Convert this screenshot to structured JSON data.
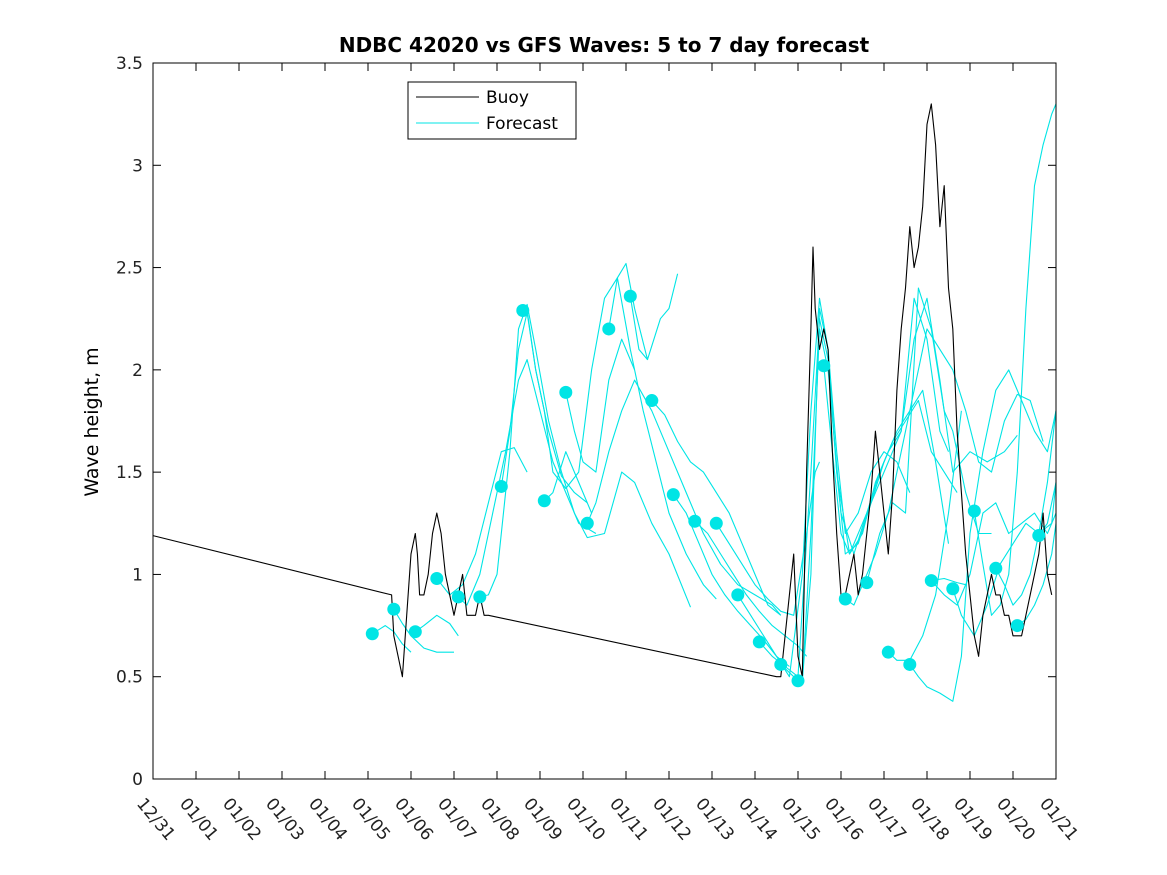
{
  "chart_data": {
    "type": "line",
    "title": "NDBC 42020 vs GFS Waves: 5 to 7 day forecast",
    "xlabel": "",
    "ylabel": "Wave height, m",
    "xlim": [
      0,
      21
    ],
    "ylim": [
      0,
      3.5
    ],
    "y_ticks": [
      0,
      0.5,
      1,
      1.5,
      2,
      2.5,
      3,
      3.5
    ],
    "y_tick_labels": [
      "0",
      "0.5",
      "1",
      "1.5",
      "2",
      "2.5",
      "3",
      "3.5"
    ],
    "x_ticks": [
      0,
      1,
      2,
      3,
      4,
      5,
      6,
      7,
      8,
      9,
      10,
      11,
      12,
      13,
      14,
      15,
      16,
      17,
      18,
      19,
      20,
      21
    ],
    "x_tick_labels": [
      "12/31",
      "01/01",
      "01/02",
      "01/03",
      "01/04",
      "01/05",
      "01/06",
      "01/07",
      "01/08",
      "01/09",
      "01/10",
      "01/11",
      "01/12",
      "01/13",
      "01/14",
      "01/15",
      "01/16",
      "01/17",
      "01/18",
      "01/19",
      "01/20",
      "01/21"
    ],
    "legend": {
      "location": "top-left",
      "entries": [
        {
          "name": "Buoy",
          "color": "#000000"
        },
        {
          "name": "Forecast",
          "color": "#00e5e5"
        }
      ]
    },
    "series": [
      {
        "name": "Buoy",
        "color": "#000000",
        "x": [
          0,
          5.55,
          5.6,
          5.7,
          5.8,
          5.9,
          6.0,
          6.1,
          6.15,
          6.2,
          6.3,
          6.4,
          6.5,
          6.6,
          6.7,
          6.8,
          6.9,
          7.0,
          7.1,
          7.2,
          7.3,
          7.4,
          7.5,
          7.6,
          7.7,
          7.8,
          14.5,
          14.6,
          14.7,
          14.8,
          14.9,
          15.0,
          15.1,
          15.2,
          15.3,
          15.35,
          15.4,
          15.5,
          15.6,
          15.7,
          15.8,
          15.9,
          16.0,
          16.1,
          16.2,
          16.3,
          16.4,
          16.5,
          16.6,
          16.7,
          16.8,
          16.9,
          17.0,
          17.1,
          17.2,
          17.3,
          17.4,
          17.5,
          17.6,
          17.7,
          17.8,
          17.9,
          18.0,
          18.1,
          18.2,
          18.3,
          18.4,
          18.5,
          18.6,
          18.7,
          18.8,
          18.9,
          19.0,
          19.1,
          19.2,
          19.3,
          19.4,
          19.5,
          19.6,
          19.7,
          19.8,
          19.9,
          20.0,
          20.1,
          20.2,
          20.3,
          20.4,
          20.5,
          20.6,
          20.7,
          20.8,
          20.9
        ],
        "y": [
          1.19,
          0.9,
          0.7,
          0.6,
          0.5,
          0.8,
          1.1,
          1.2,
          1.1,
          0.9,
          0.9,
          1.0,
          1.2,
          1.3,
          1.2,
          1.0,
          0.9,
          0.8,
          0.9,
          1.0,
          0.8,
          0.8,
          0.8,
          0.9,
          0.8,
          0.8,
          0.5,
          0.5,
          0.7,
          0.9,
          1.1,
          0.6,
          0.5,
          1.5,
          2.2,
          2.6,
          2.3,
          2.1,
          2.2,
          2.1,
          1.6,
          1.2,
          0.9,
          0.9,
          1.0,
          1.1,
          0.9,
          1.0,
          1.2,
          1.4,
          1.7,
          1.5,
          1.3,
          1.1,
          1.4,
          1.9,
          2.2,
          2.4,
          2.7,
          2.5,
          2.6,
          2.8,
          3.2,
          3.3,
          3.1,
          2.7,
          2.9,
          2.4,
          2.2,
          1.7,
          1.4,
          1.1,
          0.9,
          0.7,
          0.6,
          0.8,
          0.9,
          1.0,
          0.9,
          0.9,
          0.8,
          0.8,
          0.7,
          0.7,
          0.7,
          0.8,
          0.9,
          1.0,
          1.1,
          1.3,
          1.0,
          0.9
        ]
      },
      {
        "name": "Forecast",
        "color": "#00e5e5",
        "x": [
          5.1,
          5.4,
          5.6,
          5.8,
          6.0
        ],
        "y": [
          0.71,
          0.75,
          0.72,
          0.66,
          0.62
        ]
      },
      {
        "name": "Forecast",
        "color": "#00e5e5",
        "x": [
          5.6,
          5.8,
          6.0,
          6.3,
          6.6,
          7.0
        ],
        "y": [
          0.83,
          0.76,
          0.7,
          0.64,
          0.62,
          0.62
        ]
      },
      {
        "name": "Forecast",
        "color": "#00e5e5",
        "x": [
          6.1,
          6.3,
          6.6,
          6.9,
          7.1
        ],
        "y": [
          0.72,
          0.75,
          0.8,
          0.76,
          0.7
        ]
      },
      {
        "name": "Forecast",
        "color": "#00e5e5",
        "x": [
          6.6,
          6.9,
          7.2,
          7.5,
          7.8,
          8.1,
          8.4,
          8.7
        ],
        "y": [
          0.98,
          0.9,
          0.95,
          1.1,
          1.35,
          1.6,
          1.62,
          1.5
        ]
      },
      {
        "name": "Forecast",
        "color": "#00e5e5",
        "x": [
          7.1,
          7.3,
          7.6,
          7.9,
          8.2,
          8.5,
          8.7,
          9.0,
          9.3,
          9.6,
          9.9,
          10.3
        ],
        "y": [
          0.89,
          0.85,
          1.0,
          1.3,
          1.6,
          1.95,
          2.05,
          1.8,
          1.55,
          1.4,
          1.25,
          1.2
        ]
      },
      {
        "name": "Forecast",
        "color": "#00e5e5",
        "x": [
          7.6,
          7.8,
          8.0,
          8.3,
          8.5,
          8.7,
          8.9,
          9.2,
          9.5,
          9.8,
          10.1,
          10.5,
          10.9,
          11.2,
          11.6,
          12.0,
          12.5
        ],
        "y": [
          0.89,
          0.9,
          1.0,
          1.6,
          2.2,
          2.32,
          2.1,
          1.75,
          1.5,
          1.3,
          1.18,
          1.2,
          1.5,
          1.45,
          1.25,
          1.1,
          0.84
        ]
      },
      {
        "name": "Forecast",
        "color": "#00e5e5",
        "x": [
          8.1,
          8.3,
          8.5,
          8.7,
          8.9,
          9.2,
          9.5,
          9.8,
          10.1
        ],
        "y": [
          1.43,
          1.7,
          2.1,
          2.28,
          2.0,
          1.7,
          1.48,
          1.4,
          1.35
        ]
      },
      {
        "name": "Forecast",
        "color": "#00e5e5",
        "x": [
          8.7,
          8.9,
          9.1,
          9.3,
          9.6,
          9.9,
          10.2,
          10.5,
          10.8,
          11.1,
          11.4,
          11.7,
          12.0,
          12.4,
          12.8,
          13.1
        ],
        "y": [
          2.29,
          2.0,
          1.8,
          1.5,
          1.42,
          1.5,
          2.0,
          2.35,
          2.45,
          2.1,
          1.8,
          1.55,
          1.3,
          1.1,
          0.95,
          0.88
        ]
      },
      {
        "name": "Forecast",
        "color": "#00e5e5",
        "x": [
          9.1,
          9.3,
          9.6,
          9.9,
          10.2
        ],
        "y": [
          1.36,
          1.4,
          1.6,
          1.45,
          1.3
        ]
      },
      {
        "name": "Forecast",
        "color": "#00e5e5",
        "x": [
          9.6,
          9.8,
          10.0,
          10.3,
          10.6,
          10.9,
          11.2
        ],
        "y": [
          1.89,
          1.7,
          1.55,
          1.5,
          1.95,
          2.15,
          2.0
        ]
      },
      {
        "name": "Forecast",
        "color": "#00e5e5",
        "x": [
          10.1,
          10.3,
          10.6,
          10.9,
          11.2,
          11.6,
          12.0,
          12.4,
          12.8,
          13.2,
          13.6,
          14.0,
          14.4,
          14.6
        ],
        "y": [
          1.25,
          1.35,
          1.6,
          1.8,
          1.95,
          1.8,
          1.6,
          1.4,
          1.2,
          1.05,
          0.95,
          0.9,
          0.85,
          0.8
        ]
      },
      {
        "name": "Forecast",
        "color": "#00e5e5",
        "x": [
          10.6,
          10.8,
          11.0,
          11.2,
          11.5
        ],
        "y": [
          2.2,
          2.45,
          2.52,
          2.3,
          2.05
        ]
      },
      {
        "name": "Forecast",
        "color": "#00e5e5",
        "x": [
          11.1,
          11.3,
          11.5,
          11.8,
          12.0,
          12.2
        ],
        "y": [
          2.36,
          2.1,
          2.05,
          2.25,
          2.3,
          2.47
        ]
      },
      {
        "name": "Forecast",
        "color": "#00e5e5",
        "x": [
          11.6,
          11.9,
          12.2,
          12.5,
          12.8,
          13.1,
          13.4,
          13.7,
          14.0,
          14.3,
          14.6
        ],
        "y": [
          1.85,
          1.78,
          1.65,
          1.55,
          1.5,
          1.4,
          1.3,
          1.15,
          1.0,
          0.85,
          0.8
        ]
      },
      {
        "name": "Forecast",
        "color": "#00e5e5",
        "x": [
          12.1,
          12.4,
          12.7,
          13.0,
          13.3,
          13.6,
          13.9,
          14.2,
          14.5,
          14.8
        ],
        "y": [
          1.39,
          1.3,
          1.15,
          1.0,
          0.9,
          0.82,
          0.75,
          0.68,
          0.6,
          0.55
        ]
      },
      {
        "name": "Forecast",
        "color": "#00e5e5",
        "x": [
          12.6,
          12.9,
          13.2,
          13.5,
          13.8,
          14.1,
          14.4,
          14.7,
          15.0,
          15.2
        ],
        "y": [
          1.26,
          1.2,
          1.1,
          1.0,
          0.9,
          0.82,
          0.75,
          0.7,
          0.65,
          0.6
        ]
      },
      {
        "name": "Forecast",
        "color": "#00e5e5",
        "x": [
          13.1,
          13.4,
          13.7,
          14.0,
          14.3,
          14.6,
          14.9,
          15.2,
          15.4,
          15.5
        ],
        "y": [
          1.25,
          1.15,
          1.05,
          0.95,
          0.88,
          0.82,
          0.8,
          1.2,
          1.5,
          1.55
        ]
      },
      {
        "name": "Forecast",
        "color": "#00e5e5",
        "x": [
          13.6,
          13.9,
          14.2,
          14.5,
          14.8,
          15.1,
          15.3,
          15.5,
          15.7,
          15.9,
          16.1,
          16.4,
          16.7,
          17.0,
          17.3,
          17.6
        ],
        "y": [
          0.9,
          0.8,
          0.7,
          0.6,
          0.5,
          1.0,
          1.8,
          2.35,
          2.1,
          1.6,
          1.2,
          1.3,
          1.5,
          1.6,
          1.55,
          1.4
        ]
      },
      {
        "name": "Forecast",
        "color": "#00e5e5",
        "x": [
          14.1,
          14.4,
          14.7,
          15.0,
          15.3,
          15.5,
          15.7,
          15.9,
          16.1,
          16.4,
          16.7,
          17.0,
          17.3,
          17.6,
          17.9,
          18.2,
          18.5
        ],
        "y": [
          0.67,
          0.6,
          0.55,
          0.5,
          1.5,
          2.25,
          2.05,
          1.5,
          1.1,
          1.15,
          1.35,
          1.55,
          1.7,
          1.8,
          1.9,
          1.55,
          1.15
        ]
      },
      {
        "name": "Forecast",
        "color": "#00e5e5",
        "x": [
          14.6,
          14.9,
          15.1,
          15.3,
          15.5,
          15.7,
          16.0,
          16.3,
          16.6,
          16.9,
          17.2,
          17.5,
          17.8,
          18.1,
          18.4,
          18.7
        ],
        "y": [
          0.56,
          0.5,
          0.48,
          1.2,
          2.2,
          2.0,
          1.3,
          1.1,
          1.3,
          1.5,
          1.65,
          1.75,
          1.85,
          1.6,
          1.5,
          1.4
        ]
      },
      {
        "name": "Forecast",
        "color": "#00e5e5",
        "x": [
          15.1,
          15.3,
          15.5,
          15.7,
          15.9,
          16.2,
          16.5,
          16.8,
          17.1,
          17.4,
          17.7,
          18.0,
          18.3,
          18.5
        ],
        "y": [
          0.48,
          1.0,
          2.3,
          2.1,
          1.5,
          1.1,
          1.2,
          1.45,
          1.6,
          1.7,
          2.35,
          2.15,
          1.7,
          1.6
        ]
      },
      {
        "name": "Forecast",
        "color": "#00e5e5",
        "x": [
          15.6,
          15.8,
          16.0,
          16.2,
          16.5,
          16.8,
          17.1,
          17.4,
          17.7,
          18.0,
          18.3,
          18.6,
          19.0,
          19.4,
          19.8,
          20.1
        ],
        "y": [
          2.02,
          1.6,
          1.2,
          1.1,
          1.25,
          1.4,
          1.55,
          1.7,
          2.15,
          2.35,
          1.95,
          1.5,
          1.6,
          1.55,
          1.6,
          1.68
        ]
      },
      {
        "name": "Forecast",
        "color": "#00e5e5",
        "x": [
          16.1,
          16.3,
          16.5,
          16.8,
          17.1,
          17.4,
          17.7,
          18.0,
          18.3,
          18.6,
          18.9,
          19.2,
          19.5,
          19.8,
          20.1,
          20.4,
          20.7
        ],
        "y": [
          0.88,
          0.85,
          0.95,
          1.1,
          1.3,
          1.6,
          1.9,
          2.2,
          2.1,
          2.0,
          1.8,
          1.55,
          1.5,
          1.75,
          1.88,
          1.85,
          1.65
        ]
      },
      {
        "name": "Forecast",
        "color": "#00e5e5",
        "x": [
          16.6,
          16.9,
          17.2,
          17.5,
          17.8,
          18.1,
          18.4,
          18.6,
          18.9,
          19.2,
          19.5
        ],
        "y": [
          0.96,
          1.2,
          1.35,
          1.3,
          2.4,
          2.2,
          1.8,
          1.7,
          1.4,
          1.2,
          1.2
        ]
      },
      {
        "name": "Forecast",
        "color": "#00e5e5",
        "x": [
          17.1,
          17.3,
          17.6,
          17.9,
          18.2,
          18.5,
          18.8
        ],
        "y": [
          0.62,
          0.58,
          0.58,
          0.7,
          0.9,
          1.3,
          1.8
        ]
      },
      {
        "name": "Forecast",
        "color": "#00e5e5",
        "x": [
          17.6,
          17.8,
          18.0,
          18.3,
          18.6,
          18.8,
          19.0,
          19.3,
          19.6,
          19.9,
          20.2,
          20.5,
          20.8,
          21.0
        ],
        "y": [
          0.56,
          0.5,
          0.45,
          0.42,
          0.38,
          0.6,
          1.2,
          1.6,
          1.9,
          2.0,
          1.85,
          1.7,
          1.6,
          1.8
        ]
      },
      {
        "name": "Forecast",
        "color": "#00e5e5",
        "x": [
          18.1,
          18.4,
          18.7,
          19.0,
          19.3,
          19.6,
          19.9,
          20.2,
          20.5,
          20.8,
          21.0
        ],
        "y": [
          0.97,
          0.9,
          0.85,
          1.0,
          1.3,
          1.35,
          1.2,
          1.25,
          1.3,
          1.2,
          1.3
        ]
      },
      {
        "name": "Forecast",
        "color": "#00e5e5",
        "x": [
          18.1,
          18.4,
          18.7,
          18.9
        ],
        "y": [
          0.97,
          0.98,
          0.96,
          0.95
        ]
      },
      {
        "name": "Forecast",
        "color": "#00e5e5",
        "x": [
          18.6,
          18.8,
          19.1,
          19.4,
          19.7,
          20.0,
          20.3,
          20.6,
          20.9,
          21.0
        ],
        "y": [
          0.93,
          0.8,
          0.7,
          0.85,
          1.05,
          1.15,
          1.25,
          1.2,
          1.25,
          1.45
        ]
      },
      {
        "name": "Forecast",
        "color": "#00e5e5",
        "x": [
          19.1,
          19.3,
          19.5,
          19.7,
          19.9,
          20.1,
          20.3,
          20.5,
          20.7,
          20.9,
          21.0
        ],
        "y": [
          1.31,
          1.05,
          0.8,
          0.85,
          1.0,
          1.5,
          2.3,
          2.9,
          3.1,
          3.25,
          3.3
        ]
      },
      {
        "name": "Forecast",
        "color": "#00e5e5",
        "x": [
          19.6,
          19.8,
          20.0,
          20.2,
          20.4,
          20.6,
          20.8,
          21.0
        ],
        "y": [
          1.03,
          0.95,
          0.85,
          0.9,
          1.0,
          1.2,
          1.45,
          1.8
        ]
      },
      {
        "name": "Forecast",
        "color": "#00e5e5",
        "x": [
          20.1,
          20.3,
          20.5,
          20.7,
          20.9,
          21.0
        ],
        "y": [
          0.75,
          0.78,
          0.85,
          0.95,
          1.1,
          1.25
        ]
      },
      {
        "name": "Forecast",
        "color": "#00e5e5",
        "x": [
          20.6,
          20.8,
          21.0
        ],
        "y": [
          1.19,
          1.25,
          1.45
        ]
      }
    ],
    "markers": {
      "name": "Forecast initial points",
      "color": "#00e5e5",
      "x": [
        5.1,
        5.6,
        6.1,
        6.6,
        7.1,
        7.6,
        8.1,
        8.6,
        9.1,
        9.6,
        10.1,
        10.6,
        11.1,
        11.6,
        12.1,
        12.6,
        13.1,
        13.6,
        14.1,
        14.6,
        15.0,
        15.6,
        16.1,
        16.6,
        17.1,
        17.6,
        18.1,
        18.6,
        19.1,
        19.6,
        20.1,
        20.6
      ],
      "y": [
        0.71,
        0.83,
        0.72,
        0.98,
        0.89,
        0.89,
        1.43,
        2.29,
        1.36,
        1.89,
        1.25,
        2.2,
        2.36,
        1.85,
        1.39,
        1.26,
        1.25,
        0.9,
        0.67,
        0.56,
        0.48,
        2.02,
        0.88,
        0.96,
        0.62,
        0.56,
        0.97,
        0.93,
        1.31,
        1.03,
        0.75,
        1.19
      ]
    }
  }
}
